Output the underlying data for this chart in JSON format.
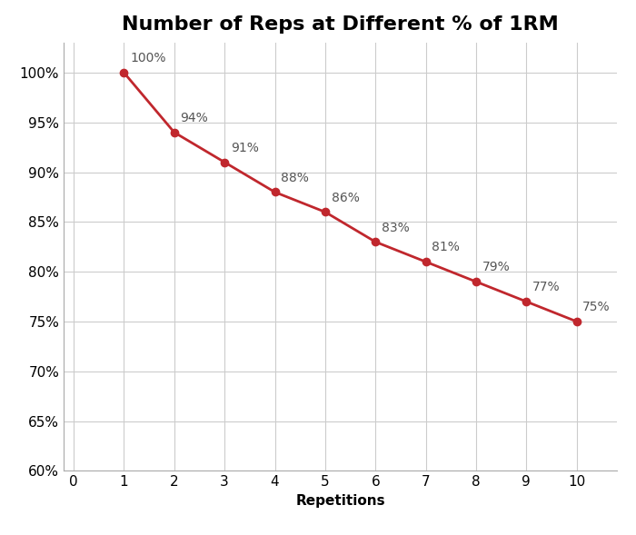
{
  "title": "Number of Reps at Different % of 1RM",
  "xlabel": "Repetitions",
  "ylabel": "",
  "x": [
    1,
    2,
    3,
    4,
    5,
    6,
    7,
    8,
    9,
    10
  ],
  "y": [
    100,
    94,
    91,
    88,
    86,
    83,
    81,
    79,
    77,
    75
  ],
  "labels": [
    "100%",
    "94%",
    "91%",
    "88%",
    "86%",
    "83%",
    "81%",
    "79%",
    "77%",
    "75%"
  ],
  "line_color": "#C0272D",
  "marker_color": "#C0272D",
  "marker_size": 6,
  "line_width": 2.0,
  "ylim": [
    60,
    103
  ],
  "xlim": [
    -0.2,
    10.8
  ],
  "yticks": [
    60,
    65,
    70,
    75,
    80,
    85,
    90,
    95,
    100
  ],
  "xticks": [
    0,
    1,
    2,
    3,
    4,
    5,
    6,
    7,
    8,
    9,
    10
  ],
  "background_color": "#ffffff",
  "grid_color": "#cccccc",
  "title_fontsize": 16,
  "label_fontsize": 11,
  "tick_fontsize": 11,
  "annotation_fontsize": 10,
  "annotation_color": "#555555"
}
